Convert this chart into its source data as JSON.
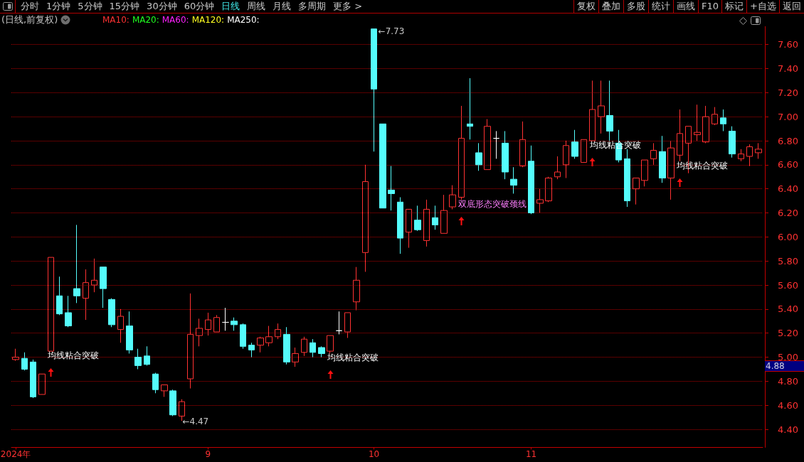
{
  "chart_data": {
    "type": "candlestick",
    "title": "(日线,前复权)",
    "categories": [
      "2024年",
      null,
      null,
      null,
      null,
      null,
      null,
      null,
      null,
      null,
      null,
      null,
      null,
      null,
      null,
      null,
      null,
      null,
      null,
      null,
      null,
      null,
      "9",
      null,
      null,
      null,
      null,
      null,
      null,
      null,
      null,
      null,
      null,
      null,
      null,
      null,
      null,
      null,
      null,
      null,
      null,
      "10",
      null,
      null,
      null,
      null,
      null,
      null,
      null,
      null,
      null,
      null,
      null,
      null,
      null,
      null,
      null,
      null,
      null,
      "11",
      null,
      null,
      null,
      null,
      null,
      null,
      null,
      null,
      null,
      null,
      null,
      null,
      null,
      null,
      null,
      null,
      null,
      null,
      null,
      null,
      null,
      null,
      null,
      null,
      null,
      null
    ],
    "ohlc": [
      [
        4.98,
        5.07,
        4.97,
        5.0
      ],
      [
        4.99,
        5.04,
        4.89,
        4.9
      ],
      [
        4.96,
        4.98,
        4.66,
        4.67
      ],
      [
        4.69,
        4.86,
        4.69,
        4.86
      ],
      [
        5.05,
        5.83,
        5.05,
        5.83
      ],
      [
        5.51,
        5.67,
        5.35,
        5.36
      ],
      [
        5.37,
        5.51,
        5.25,
        5.26
      ],
      [
        5.57,
        6.1,
        5.45,
        5.51
      ],
      [
        5.49,
        5.73,
        5.31,
        5.62
      ],
      [
        5.6,
        5.82,
        5.54,
        5.64
      ],
      [
        5.75,
        5.75,
        5.41,
        5.57
      ],
      [
        5.48,
        5.49,
        5.25,
        5.27
      ],
      [
        5.23,
        5.4,
        5.12,
        5.34
      ],
      [
        5.26,
        5.38,
        5.03,
        5.06
      ],
      [
        5.0,
        5.07,
        4.9,
        4.93
      ],
      [
        5.01,
        5.09,
        4.93,
        4.94
      ],
      [
        4.86,
        4.87,
        4.7,
        4.73
      ],
      [
        4.72,
        4.77,
        4.67,
        4.77
      ],
      [
        4.72,
        4.73,
        4.51,
        4.52
      ],
      [
        4.51,
        4.65,
        4.47,
        4.63
      ],
      [
        4.82,
        5.53,
        4.74,
        5.19
      ],
      [
        5.18,
        5.32,
        5.09,
        5.24
      ],
      [
        5.23,
        5.37,
        5.18,
        5.31
      ],
      [
        5.21,
        5.35,
        5.21,
        5.33
      ],
      [
        5.29,
        5.41,
        5.22,
        5.29
      ],
      [
        5.3,
        5.33,
        5.22,
        5.27
      ],
      [
        5.27,
        5.28,
        5.07,
        5.09
      ],
      [
        5.1,
        5.12,
        5.0,
        5.06
      ],
      [
        5.1,
        5.17,
        5.04,
        5.16
      ],
      [
        5.12,
        5.26,
        5.09,
        5.17
      ],
      [
        5.17,
        5.28,
        5.15,
        5.23
      ],
      [
        5.19,
        5.25,
        4.94,
        4.96
      ],
      [
        4.96,
        5.08,
        4.92,
        5.03
      ],
      [
        5.04,
        5.17,
        5.01,
        5.15
      ],
      [
        5.12,
        5.15,
        5.0,
        5.04
      ],
      [
        5.08,
        5.09,
        5.0,
        5.03
      ],
      [
        5.05,
        5.18,
        5.03,
        5.18
      ],
      [
        5.22,
        5.38,
        5.19,
        5.22
      ],
      [
        5.21,
        5.37,
        5.16,
        5.37
      ],
      [
        5.46,
        5.75,
        5.39,
        5.64
      ],
      [
        5.87,
        6.6,
        5.71,
        6.46
      ],
      [
        7.73,
        7.73,
        6.71,
        7.23
      ],
      [
        6.94,
        6.94,
        6.24,
        6.24
      ],
      [
        6.39,
        6.59,
        6.22,
        6.36
      ],
      [
        6.29,
        6.33,
        5.86,
        5.99
      ],
      [
        6.04,
        6.23,
        5.91,
        6.23
      ],
      [
        6.14,
        6.26,
        6.05,
        6.06
      ],
      [
        5.97,
        6.31,
        5.92,
        6.23
      ],
      [
        6.16,
        6.26,
        6.06,
        6.1
      ],
      [
        6.03,
        6.35,
        6.03,
        6.22
      ],
      [
        6.25,
        6.43,
        6.23,
        6.35
      ],
      [
        6.33,
        7.09,
        6.31,
        6.82
      ],
      [
        6.94,
        7.32,
        6.81,
        6.92
      ],
      [
        6.7,
        6.78,
        6.55,
        6.6
      ],
      [
        6.56,
        6.98,
        6.56,
        6.92
      ],
      [
        6.82,
        6.88,
        6.65,
        6.82
      ],
      [
        6.78,
        6.88,
        6.48,
        6.54
      ],
      [
        6.48,
        6.58,
        6.36,
        6.43
      ],
      [
        6.59,
        6.96,
        6.58,
        6.81
      ],
      [
        6.63,
        6.76,
        6.19,
        6.2
      ],
      [
        6.28,
        6.4,
        6.2,
        6.31
      ],
      [
        6.3,
        6.5,
        6.29,
        6.49
      ],
      [
        6.5,
        6.67,
        6.48,
        6.54
      ],
      [
        6.6,
        6.8,
        6.49,
        6.76
      ],
      [
        6.79,
        6.89,
        6.65,
        6.67
      ],
      [
        6.62,
        6.81,
        6.62,
        6.81
      ],
      [
        6.8,
        7.3,
        6.8,
        7.06
      ],
      [
        7.0,
        7.3,
        6.86,
        7.09
      ],
      [
        7.01,
        7.3,
        6.8,
        6.88
      ],
      [
        6.78,
        6.89,
        6.62,
        6.64
      ],
      [
        6.65,
        6.73,
        6.25,
        6.3
      ],
      [
        6.4,
        6.49,
        6.27,
        6.49
      ],
      [
        6.47,
        6.64,
        6.42,
        6.64
      ],
      [
        6.65,
        6.78,
        6.6,
        6.72
      ],
      [
        6.71,
        6.84,
        6.45,
        6.49
      ],
      [
        6.49,
        6.8,
        6.31,
        6.74
      ],
      [
        6.68,
        7.06,
        6.63,
        6.86
      ],
      [
        6.78,
        6.92,
        6.53,
        6.92
      ],
      [
        6.85,
        7.1,
        6.8,
        6.87
      ],
      [
        6.79,
        7.09,
        6.78,
        7.0
      ],
      [
        6.94,
        7.08,
        6.93,
        7.02
      ],
      [
        6.99,
        7.06,
        6.88,
        6.94
      ],
      [
        6.88,
        6.92,
        6.66,
        6.69
      ],
      [
        6.65,
        6.73,
        6.63,
        6.69
      ],
      [
        6.67,
        6.77,
        6.59,
        6.75
      ],
      [
        6.7,
        6.78,
        6.65,
        6.73
      ]
    ],
    "colors": [
      "#ff3232",
      "#54fcfc",
      "#54fcfc",
      "#ff3232",
      "#ff3232",
      "#54fcfc",
      "#54fcfc",
      "#54fcfc",
      "#ff3232",
      "#ff3232",
      "#54fcfc",
      "#54fcfc",
      "#ff3232",
      "#54fcfc",
      "#54fcfc",
      "#54fcfc",
      "#54fcfc",
      "#ff3232",
      "#54fcfc",
      "#ff3232",
      "#ff3232",
      "#ff3232",
      "#ff3232",
      "#ff3232",
      "#ffffff",
      "#54fcfc",
      "#54fcfc",
      "#54fcfc",
      "#ff3232",
      "#ff3232",
      "#ff3232",
      "#54fcfc",
      "#ff3232",
      "#ff3232",
      "#54fcfc",
      "#54fcfc",
      "#ff3232",
      "#ffffff",
      "#ff3232",
      "#ff3232",
      "#ff3232",
      "#54fcfc",
      "#54fcfc",
      "#54fcfc",
      "#54fcfc",
      "#ff3232",
      "#54fcfc",
      "#ff3232",
      "#54fcfc",
      "#ff3232",
      "#ff3232",
      "#ff3232",
      "#54fcfc",
      "#54fcfc",
      "#ff3232",
      "#ffffff",
      "#54fcfc",
      "#54fcfc",
      "#ff3232",
      "#54fcfc",
      "#ff3232",
      "#ff3232",
      "#ff3232",
      "#ff3232",
      "#54fcfc",
      "#ff3232",
      "#ff3232",
      "#ff3232",
      "#54fcfc",
      "#54fcfc",
      "#54fcfc",
      "#ff3232",
      "#ff3232",
      "#ff3232",
      "#54fcfc",
      "#ff3232",
      "#ff3232",
      "#ff3232",
      "#ff3232",
      "#ff3232",
      "#ff3232",
      "#54fcfc",
      "#54fcfc",
      "#ff3232",
      "#ff3232",
      "#ff3232"
    ],
    "series": [
      {
        "name": "MA10:",
        "color": "#ff3232",
        "values": [
          null,
          null,
          null,
          null,
          null,
          null,
          null,
          null,
          null,
          null,
          null,
          null,
          null,
          null,
          null,
          null,
          null,
          null,
          null,
          null,
          null,
          null,
          null,
          null,
          null,
          null,
          null,
          null,
          null,
          null,
          null,
          null,
          null,
          null,
          null,
          null,
          null,
          null,
          null,
          null,
          null,
          null,
          null,
          null,
          null,
          null,
          null,
          null,
          null,
          null,
          null,
          null,
          null,
          null,
          null,
          null,
          null,
          null,
          null,
          null,
          null,
          null,
          null,
          null,
          null,
          null,
          null,
          null,
          null,
          null,
          null,
          null,
          null,
          null,
          null,
          null,
          null,
          null,
          null,
          null,
          null,
          null,
          null,
          null,
          null,
          null
        ]
      },
      {
        "name": "MA20:",
        "color": "#20ff20",
        "values": [
          null,
          null,
          null,
          null,
          null,
          null,
          null,
          null,
          null,
          null,
          null,
          null,
          null,
          null,
          null,
          null,
          null,
          null,
          null,
          null,
          null,
          null,
          null,
          null,
          null,
          null,
          null,
          null,
          null,
          null,
          null,
          null,
          null,
          null,
          null,
          null,
          null,
          null,
          null,
          null,
          null,
          null,
          null,
          null,
          null,
          null,
          null,
          null,
          null,
          null,
          null,
          null,
          null,
          null,
          null,
          null,
          null,
          null,
          null,
          null,
          null,
          null,
          null,
          null,
          null,
          null,
          null,
          null,
          null,
          null,
          null,
          null,
          null,
          null,
          null,
          null,
          null,
          null,
          null,
          null,
          null,
          null,
          null,
          null,
          null,
          null
        ]
      },
      {
        "name": "MA60:",
        "color": "#ff20ff",
        "values": [
          null,
          null,
          null,
          null,
          null,
          null,
          null,
          null,
          null,
          null,
          null,
          null,
          null,
          null,
          null,
          null,
          null,
          null,
          null,
          null,
          null,
          null,
          null,
          null,
          null,
          null,
          null,
          null,
          null,
          null,
          null,
          null,
          null,
          null,
          null,
          null,
          null,
          null,
          null,
          null,
          null,
          null,
          null,
          null,
          null,
          null,
          null,
          null,
          null,
          null,
          null,
          null,
          null,
          null,
          null,
          null,
          null,
          null,
          null,
          null,
          null,
          null,
          null,
          null,
          null,
          null,
          null,
          null,
          null,
          null,
          null,
          null,
          null,
          null,
          null,
          null,
          null,
          null,
          null,
          null,
          null,
          null,
          null,
          null,
          null,
          null
        ]
      },
      {
        "name": "MA120:",
        "color": "#ffff20",
        "values": [
          null,
          null,
          null,
          null,
          null,
          null,
          null,
          null,
          null,
          null,
          null,
          null,
          null,
          null,
          null,
          null,
          null,
          null,
          null,
          null,
          null,
          null,
          null,
          null,
          null,
          null,
          null,
          null,
          null,
          null,
          null,
          null,
          null,
          null,
          null,
          null,
          null,
          null,
          null,
          null,
          null,
          null,
          null,
          null,
          null,
          null,
          null,
          null,
          null,
          null,
          null,
          null,
          null,
          null,
          null,
          null,
          null,
          null,
          null,
          null,
          null,
          null,
          null,
          null,
          null,
          null,
          null,
          null,
          null,
          null,
          null,
          null,
          null,
          null,
          null,
          null,
          null,
          null,
          null,
          null,
          null,
          null,
          null,
          null,
          null,
          null
        ]
      },
      {
        "name": "MA250:",
        "color": "#ffffff",
        "values": [
          null,
          null,
          null,
          null,
          null,
          null,
          null,
          null,
          null,
          null,
          null,
          null,
          null,
          null,
          null,
          null,
          null,
          null,
          null,
          null,
          null,
          null,
          null,
          null,
          null,
          null,
          null,
          null,
          null,
          null,
          null,
          null,
          null,
          null,
          null,
          null,
          null,
          null,
          null,
          null,
          null,
          null,
          null,
          null,
          null,
          null,
          null,
          null,
          null,
          null,
          null,
          null,
          null,
          null,
          null,
          null,
          null,
          null,
          null,
          null,
          null,
          null,
          null,
          null,
          null,
          null,
          null,
          null,
          null,
          null,
          null,
          null,
          null,
          null,
          null,
          null,
          null,
          null,
          null,
          null,
          null,
          null,
          null,
          null,
          null,
          null
        ]
      }
    ],
    "ylim": [
      4.25,
      7.75
    ],
    "yticks": [
      {
        "value": 4.4,
        "label": "4.40"
      },
      {
        "value": 4.6,
        "label": "4.60"
      },
      {
        "value": 4.8,
        "label": "4.80"
      },
      {
        "value": 5.0,
        "label": "5.00"
      },
      {
        "value": 5.2,
        "label": "5.20"
      },
      {
        "value": 5.4,
        "label": "5.40"
      },
      {
        "value": 5.6,
        "label": "5.60"
      },
      {
        "value": 5.8,
        "label": "5.80"
      },
      {
        "value": 6.0,
        "label": "6.00"
      },
      {
        "value": 6.2,
        "label": "6.20"
      },
      {
        "value": 6.4,
        "label": "6.40"
      },
      {
        "value": 6.6,
        "label": "6.60"
      },
      {
        "value": 6.8,
        "label": "6.80"
      },
      {
        "value": 7.0,
        "label": "7.00"
      },
      {
        "value": 7.2,
        "label": "7.20"
      },
      {
        "value": 7.4,
        "label": "7.40"
      },
      {
        "value": 7.6,
        "label": "7.60"
      }
    ],
    "grid": "y",
    "annotations": [
      "分时",
      "1分钟",
      "5分钟",
      "15分钟",
      "30分钟",
      "60分钟",
      "日线",
      "周线",
      "月线",
      "多周期",
      "更多 >",
      "复权",
      "叠加",
      "多股",
      "统计",
      "画线",
      "F10",
      "标记",
      "+自选",
      "返回",
      "均线粘合突破",
      "均线粘合突破",
      "双底形态突破颈线",
      "均线粘合突破",
      "均线粘合突破",
      "←7.73",
      "←4.47",
      "4.88"
    ]
  }
}
